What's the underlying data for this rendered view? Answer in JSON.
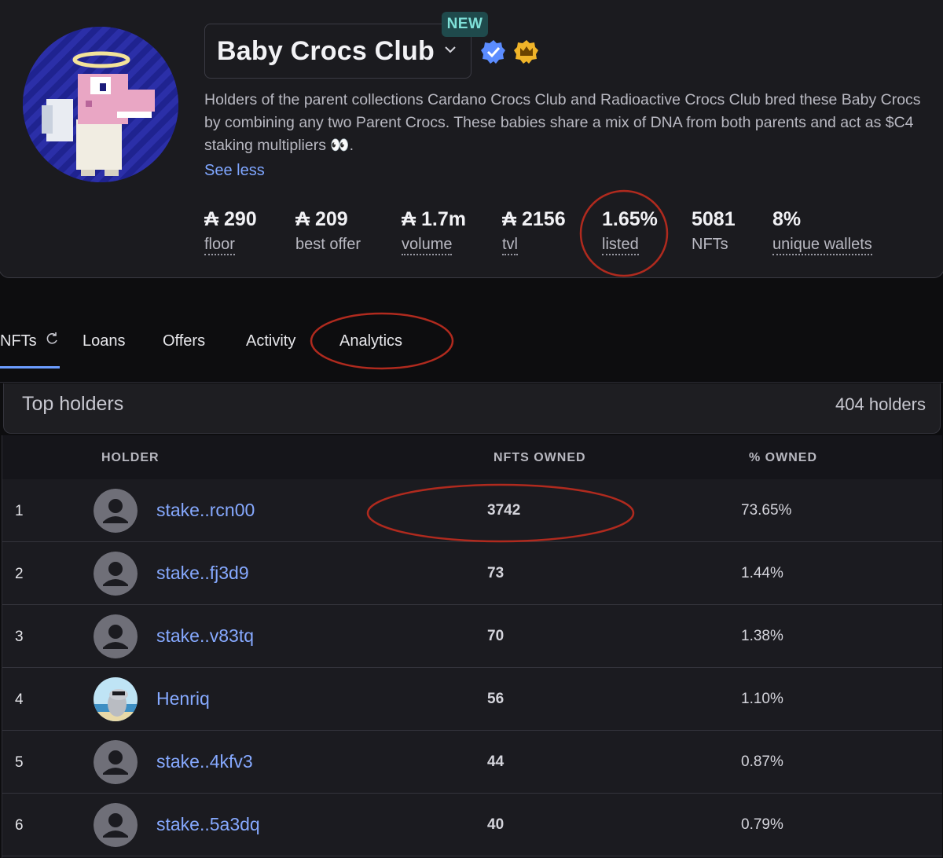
{
  "collection": {
    "title": "Baby Crocs Club",
    "new_badge": "NEW",
    "description": "Holders of the parent collections Cardano Crocs Club and Radioactive Crocs Club bred these Baby Crocs by combining any two Parent Crocs. These babies share a mix of DNA from both parents and act as $C4 staking multipliers 👀.",
    "see_less": "See less",
    "icons": [
      "chevron-down-icon",
      "verified-badge-icon",
      "crown-badge-icon"
    ]
  },
  "stats": [
    {
      "value": "₳ 290",
      "label": "floor"
    },
    {
      "value": "₳ 209",
      "label": "best offer"
    },
    {
      "value": "₳ 1.7m",
      "label": "volume"
    },
    {
      "value": "₳ 2156",
      "label": "tvl"
    },
    {
      "value": "1.65%",
      "label": "listed"
    },
    {
      "value": "5081",
      "label": "NFTs"
    },
    {
      "value": "8%",
      "label": "unique wallets"
    }
  ],
  "tabs": [
    {
      "label": "NFTs",
      "active": true
    },
    {
      "label": "Loans"
    },
    {
      "label": "Offers"
    },
    {
      "label": "Activity"
    },
    {
      "label": "Analytics"
    }
  ],
  "holders": {
    "title": "Top holders",
    "count": "404 holders",
    "columns": [
      "HOLDER",
      "NFTS OWNED",
      "% OWNED"
    ],
    "rows": [
      {
        "rank": "1",
        "name": "stake..rcn00",
        "owned": "3742",
        "pct": "73.65%",
        "avatar": "default"
      },
      {
        "rank": "2",
        "name": "stake..fj3d9",
        "owned": "73",
        "pct": "1.44%",
        "avatar": "default"
      },
      {
        "rank": "3",
        "name": "stake..v83tq",
        "owned": "70",
        "pct": "1.38%",
        "avatar": "default"
      },
      {
        "rank": "4",
        "name": "Henriq",
        "owned": "56",
        "pct": "1.10%",
        "avatar": "custom"
      },
      {
        "rank": "5",
        "name": "stake..4kfv3",
        "owned": "44",
        "pct": "0.87%",
        "avatar": "default"
      },
      {
        "rank": "6",
        "name": "stake..5a3dq",
        "owned": "40",
        "pct": "0.79%",
        "avatar": "default"
      }
    ]
  },
  "colors": {
    "accent": "#6b9cff",
    "link": "#86a9ff",
    "annotation": "#b02a1e",
    "new_badge_bg": "#1f4a4c",
    "new_badge_fg": "#7fe0d8"
  }
}
